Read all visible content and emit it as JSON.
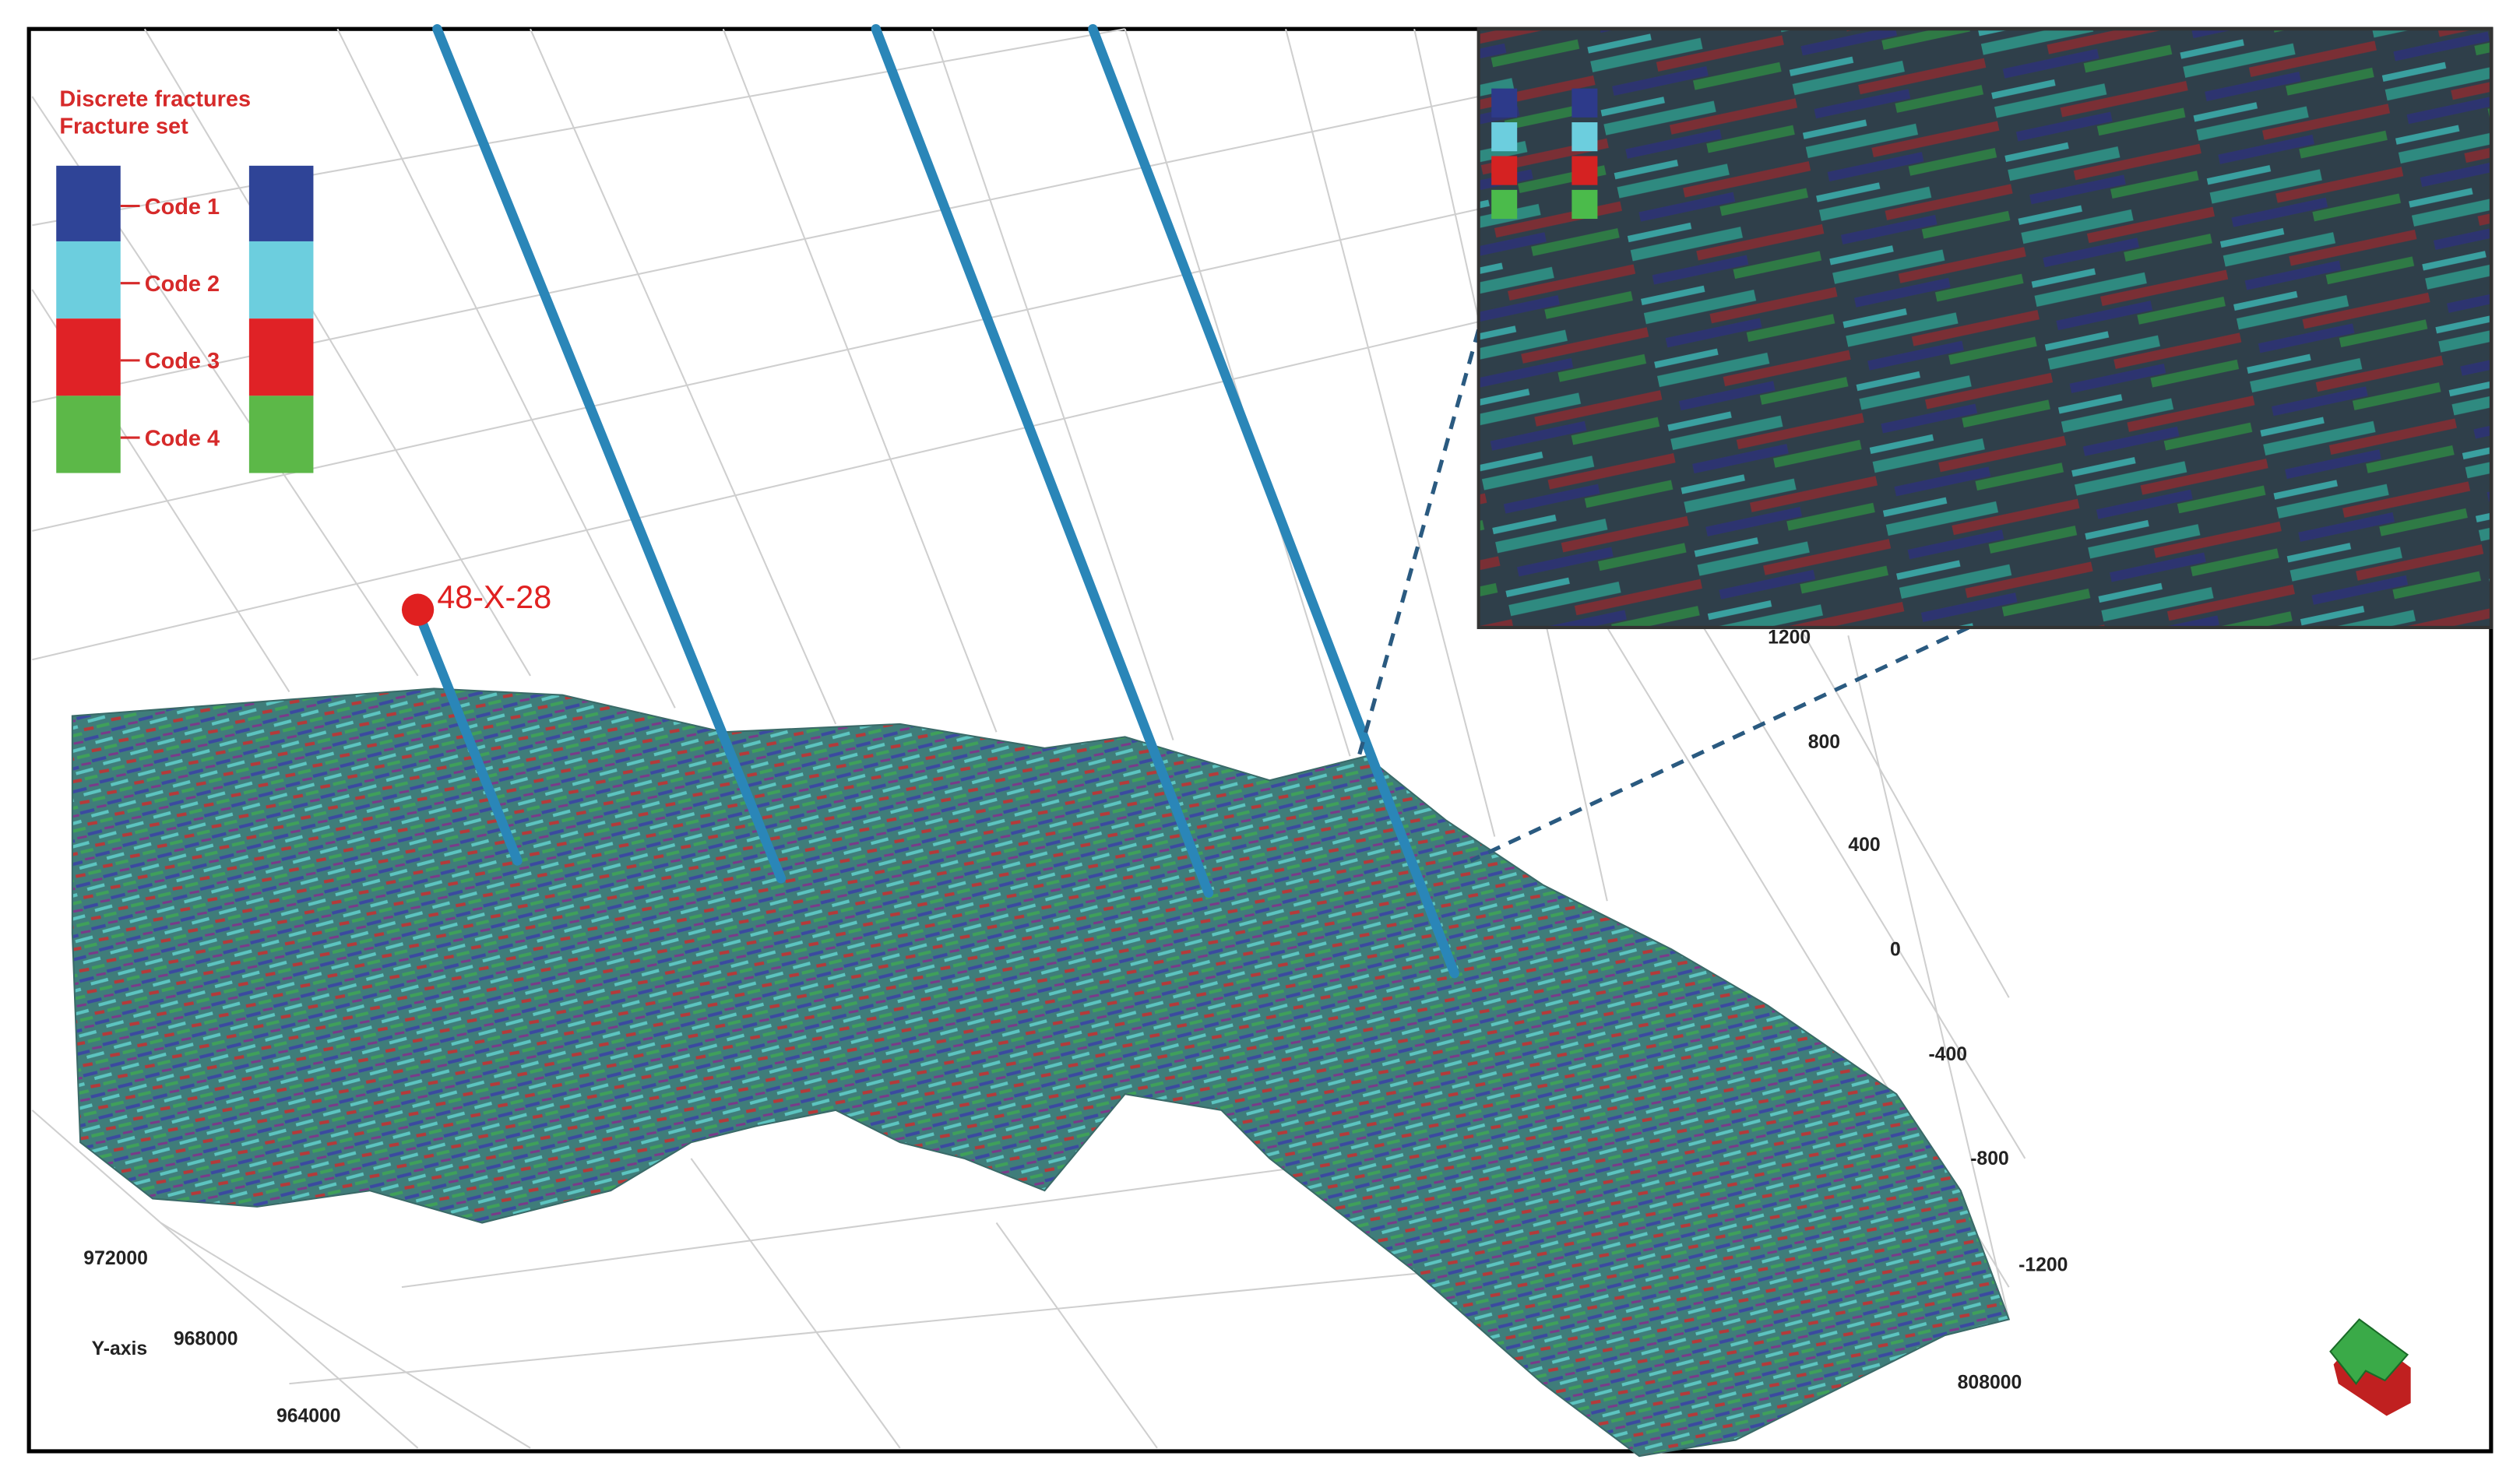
{
  "legend": {
    "title": "Discrete fractures",
    "subtitle": "Fracture set",
    "items": [
      "Code 1",
      "Code 2",
      "Code 3",
      "Code 4"
    ]
  },
  "well_label": "48-X-28",
  "axes": {
    "z_ticks": [
      "1200",
      "800",
      "400",
      "0",
      "-400",
      "-800",
      "-1200"
    ],
    "x_ticks": [
      "808000"
    ],
    "y_ticks": [
      "972000",
      "968000",
      "964000"
    ],
    "y_label": "Y-axis"
  }
}
